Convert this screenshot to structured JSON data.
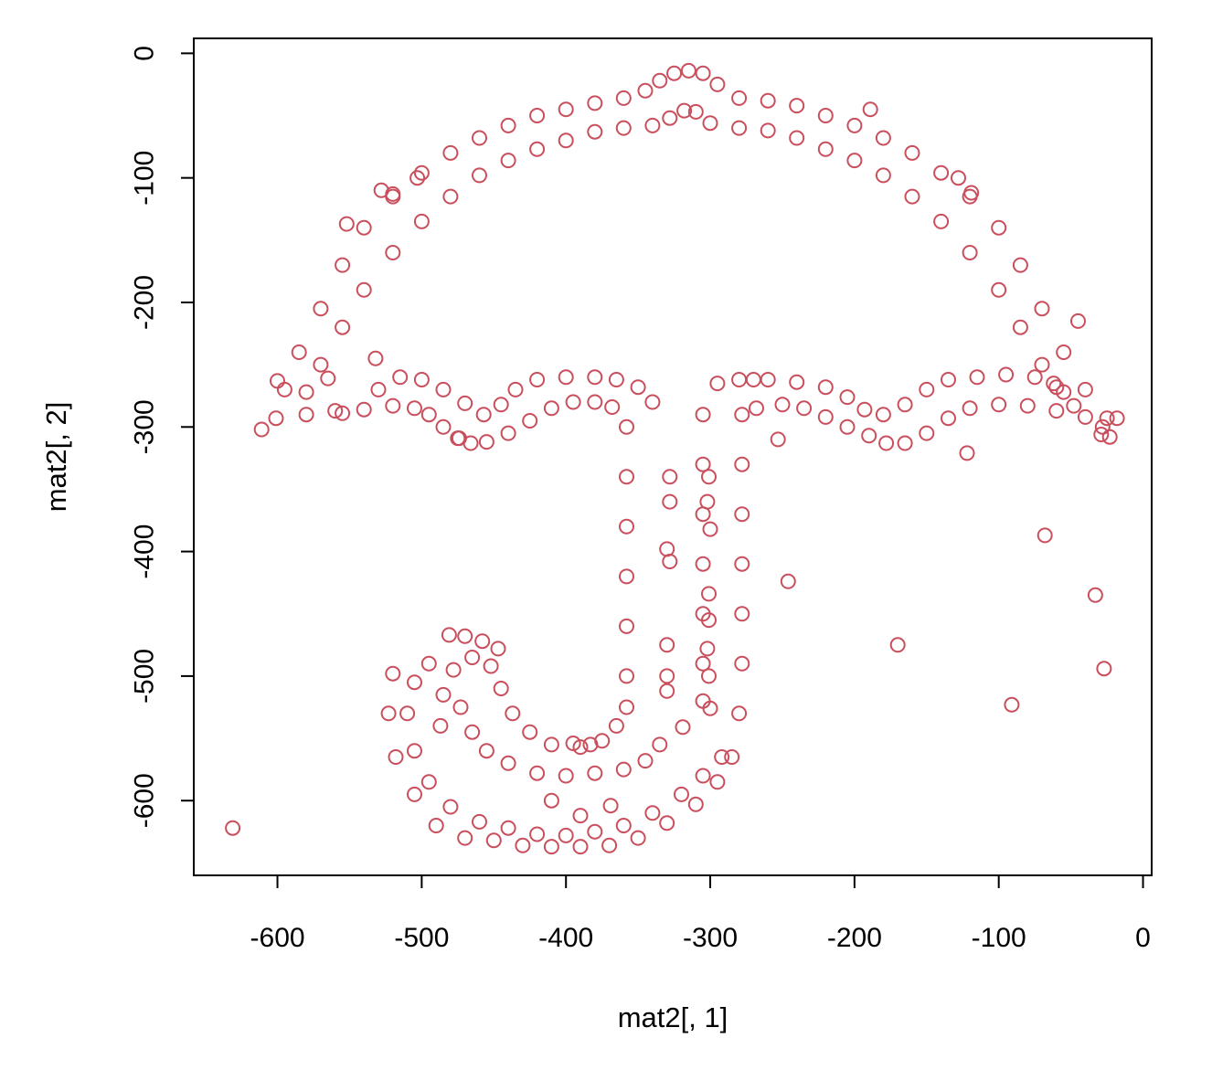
{
  "chart_data": {
    "type": "scatter",
    "title": "",
    "xlabel": "mat2[, 1]",
    "ylabel": "mat2[, 2]",
    "xlim": [
      -658,
      6
    ],
    "ylim": [
      -660,
      12
    ],
    "x_ticks": [
      -600,
      -500,
      -400,
      -300,
      -200,
      -100,
      0
    ],
    "y_ticks": [
      0,
      -100,
      -200,
      -300,
      -400,
      -500,
      -600
    ],
    "x_tick_labels": [
      "-600",
      "-500",
      "-400",
      "-300",
      "-200",
      "-100",
      "0"
    ],
    "y_tick_labels": [
      "0",
      "-100",
      "-200",
      "-300",
      "-400",
      "-500",
      "-600"
    ],
    "grid": false,
    "legend": "none",
    "marker": "open-circle",
    "point_color": "#C94F5D",
    "series": [
      {
        "points": [
          [
            -601,
            -293
          ],
          [
            -595,
            -270
          ],
          [
            -585,
            -240
          ],
          [
            -570,
            -205
          ],
          [
            -555,
            -170
          ],
          [
            -540,
            -140
          ],
          [
            -520,
            -115
          ],
          [
            -500,
            -96
          ],
          [
            -480,
            -80
          ],
          [
            -460,
            -68
          ],
          [
            -440,
            -58
          ],
          [
            -420,
            -50
          ],
          [
            -400,
            -45
          ],
          [
            -380,
            -40
          ],
          [
            -360,
            -36
          ],
          [
            -345,
            -30
          ],
          [
            -335,
            -22
          ],
          [
            -325,
            -16
          ],
          [
            -315,
            -14
          ],
          [
            -305,
            -16
          ],
          [
            -295,
            -25
          ],
          [
            -280,
            -36
          ],
          [
            -260,
            -38
          ],
          [
            -240,
            -42
          ],
          [
            -220,
            -50
          ],
          [
            -200,
            -58
          ],
          [
            -180,
            -68
          ],
          [
            -160,
            -80
          ],
          [
            -140,
            -96
          ],
          [
            -120,
            -115
          ],
          [
            -100,
            -140
          ],
          [
            -85,
            -170
          ],
          [
            -70,
            -205
          ],
          [
            -55,
            -240
          ],
          [
            -40,
            -270
          ],
          [
            -25,
            -293
          ],
          [
            -580,
            -272
          ],
          [
            -570,
            -250
          ],
          [
            -555,
            -220
          ],
          [
            -540,
            -190
          ],
          [
            -520,
            -160
          ],
          [
            -500,
            -135
          ],
          [
            -480,
            -115
          ],
          [
            -460,
            -98
          ],
          [
            -440,
            -86
          ],
          [
            -420,
            -77
          ],
          [
            -400,
            -70
          ],
          [
            -380,
            -63
          ],
          [
            -360,
            -60
          ],
          [
            -340,
            -58
          ],
          [
            -328,
            -52
          ],
          [
            -318,
            -46
          ],
          [
            -310,
            -47
          ],
          [
            -300,
            -56
          ],
          [
            -280,
            -60
          ],
          [
            -260,
            -62
          ],
          [
            -240,
            -68
          ],
          [
            -220,
            -77
          ],
          [
            -200,
            -86
          ],
          [
            -180,
            -98
          ],
          [
            -160,
            -115
          ],
          [
            -140,
            -135
          ],
          [
            -120,
            -160
          ],
          [
            -100,
            -190
          ],
          [
            -85,
            -220
          ],
          [
            -70,
            -250
          ],
          [
            -55,
            -272
          ],
          [
            -580,
            -290
          ],
          [
            -560,
            -287
          ],
          [
            -540,
            -286
          ],
          [
            -520,
            -283
          ],
          [
            -505,
            -285
          ],
          [
            -495,
            -290
          ],
          [
            -485,
            -300
          ],
          [
            -475,
            -309
          ],
          [
            -466,
            -313
          ],
          [
            -455,
            -312
          ],
          [
            -440,
            -305
          ],
          [
            -425,
            -295
          ],
          [
            -410,
            -285
          ],
          [
            -395,
            -280
          ],
          [
            -380,
            -280
          ],
          [
            -368,
            -284
          ],
          [
            -530,
            -270
          ],
          [
            -515,
            -260
          ],
          [
            -500,
            -262
          ],
          [
            -485,
            -270
          ],
          [
            -470,
            -281
          ],
          [
            -457,
            -290
          ],
          [
            -445,
            -282
          ],
          [
            -435,
            -270
          ],
          [
            -420,
            -262
          ],
          [
            -400,
            -260
          ],
          [
            -380,
            -260
          ],
          [
            -365,
            -262
          ],
          [
            -350,
            -268
          ],
          [
            -340,
            -280
          ],
          [
            -268,
            -285
          ],
          [
            -250,
            -282
          ],
          [
            -235,
            -285
          ],
          [
            -220,
            -292
          ],
          [
            -205,
            -300
          ],
          [
            -190,
            -307
          ],
          [
            -178,
            -313
          ],
          [
            -165,
            -313
          ],
          [
            -150,
            -305
          ],
          [
            -135,
            -293
          ],
          [
            -120,
            -285
          ],
          [
            -100,
            -282
          ],
          [
            -80,
            -283
          ],
          [
            -60,
            -287
          ],
          [
            -40,
            -292
          ],
          [
            -28,
            -300
          ],
          [
            -295,
            -265
          ],
          [
            -280,
            -262
          ],
          [
            -260,
            -262
          ],
          [
            -240,
            -264
          ],
          [
            -220,
            -268
          ],
          [
            -205,
            -276
          ],
          [
            -193,
            -286
          ],
          [
            -180,
            -290
          ],
          [
            -165,
            -282
          ],
          [
            -150,
            -270
          ],
          [
            -135,
            -262
          ],
          [
            -115,
            -260
          ],
          [
            -95,
            -258
          ],
          [
            -75,
            -260
          ],
          [
            -60,
            -268
          ],
          [
            -48,
            -283
          ],
          [
            -358,
            -300
          ],
          [
            -358,
            -340
          ],
          [
            -358,
            -380
          ],
          [
            -358,
            -420
          ],
          [
            -358,
            -460
          ],
          [
            -358,
            -500
          ],
          [
            -358,
            -525
          ],
          [
            -305,
            -290
          ],
          [
            -305,
            -330
          ],
          [
            -305,
            -370
          ],
          [
            -305,
            -410
          ],
          [
            -305,
            -450
          ],
          [
            -305,
            -490
          ],
          [
            -305,
            -520
          ],
          [
            -278,
            -290
          ],
          [
            -278,
            -330
          ],
          [
            -278,
            -370
          ],
          [
            -278,
            -410
          ],
          [
            -278,
            -450
          ],
          [
            -278,
            -490
          ],
          [
            -280,
            -530
          ],
          [
            -285,
            -565
          ],
          [
            -365,
            -540
          ],
          [
            -375,
            -552
          ],
          [
            -390,
            -557
          ],
          [
            -410,
            -555
          ],
          [
            -425,
            -545
          ],
          [
            -437,
            -530
          ],
          [
            -445,
            -510
          ],
          [
            -452,
            -492
          ],
          [
            -465,
            -485
          ],
          [
            -478,
            -495
          ],
          [
            -485,
            -515
          ],
          [
            -487,
            -540
          ],
          [
            -335,
            -555
          ],
          [
            -345,
            -568
          ],
          [
            -360,
            -575
          ],
          [
            -380,
            -578
          ],
          [
            -400,
            -580
          ],
          [
            -420,
            -578
          ],
          [
            -440,
            -570
          ],
          [
            -455,
            -560
          ],
          [
            -465,
            -545
          ],
          [
            -473,
            -525
          ],
          [
            -495,
            -490
          ],
          [
            -505,
            -505
          ],
          [
            -510,
            -530
          ],
          [
            -505,
            -560
          ],
          [
            -495,
            -585
          ],
          [
            -480,
            -605
          ],
          [
            -460,
            -617
          ],
          [
            -440,
            -622
          ],
          [
            -420,
            -627
          ],
          [
            -400,
            -628
          ],
          [
            -380,
            -625
          ],
          [
            -360,
            -620
          ],
          [
            -340,
            -610
          ],
          [
            -320,
            -595
          ],
          [
            -305,
            -580
          ],
          [
            -292,
            -565
          ],
          [
            -520,
            -498
          ],
          [
            -523,
            -530
          ],
          [
            -518,
            -565
          ],
          [
            -505,
            -595
          ],
          [
            -490,
            -620
          ],
          [
            -470,
            -630
          ],
          [
            -450,
            -632
          ],
          [
            -430,
            -636
          ],
          [
            -410,
            -637
          ],
          [
            -390,
            -637
          ],
          [
            -370,
            -636
          ],
          [
            -350,
            -630
          ],
          [
            -330,
            -618
          ],
          [
            -310,
            -603
          ],
          [
            -295,
            -585
          ],
          [
            -481,
            -467
          ],
          [
            -470,
            -468
          ],
          [
            -458,
            -472
          ],
          [
            -447,
            -478
          ],
          [
            -189,
            -45
          ],
          [
            -128,
            -100
          ],
          [
            -119,
            -112
          ],
          [
            -45,
            -215
          ],
          [
            -62,
            -265
          ],
          [
            -23,
            -308
          ],
          [
            -18,
            -293
          ],
          [
            -29,
            -306
          ],
          [
            -631,
            -622
          ],
          [
            -611,
            -302
          ],
          [
            -552,
            -137
          ],
          [
            -528,
            -110
          ],
          [
            -520,
            -113
          ],
          [
            -503,
            -100
          ],
          [
            -600,
            -263
          ],
          [
            -328,
            -340
          ],
          [
            -328,
            -360
          ],
          [
            -330,
            -398
          ],
          [
            -328,
            -408
          ],
          [
            -330,
            -475
          ],
          [
            -330,
            -500
          ],
          [
            -330,
            -512
          ],
          [
            -301,
            -340
          ],
          [
            -302,
            -360
          ],
          [
            -300,
            -382
          ],
          [
            -301,
            -434
          ],
          [
            -301,
            -455
          ],
          [
            -302,
            -478
          ],
          [
            -301,
            -500
          ],
          [
            -300,
            -526
          ],
          [
            -270,
            -262
          ],
          [
            -253,
            -310
          ],
          [
            -246,
            -424
          ],
          [
            -170,
            -475
          ],
          [
            -122,
            -321
          ],
          [
            -91,
            -523
          ],
          [
            -68,
            -387
          ],
          [
            -33,
            -435
          ],
          [
            -27,
            -494
          ],
          [
            -555,
            -289
          ],
          [
            -565,
            -261
          ],
          [
            -532,
            -245
          ],
          [
            -474,
            -309
          ],
          [
            -395,
            -554
          ],
          [
            -383,
            -555
          ],
          [
            -369,
            -604
          ],
          [
            -319,
            -541
          ],
          [
            -410,
            -600
          ],
          [
            -390,
            -612
          ]
        ]
      }
    ]
  }
}
